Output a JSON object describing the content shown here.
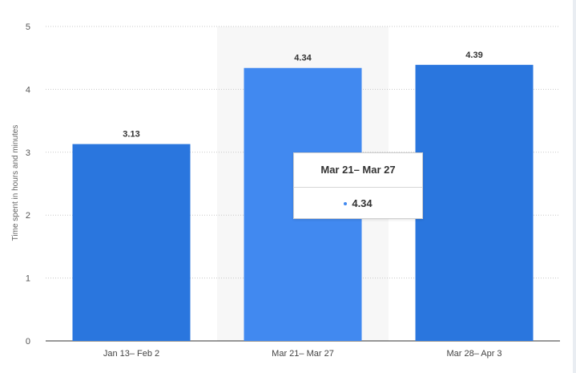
{
  "chart_data": {
    "type": "bar",
    "categories": [
      "Jan 13– Feb 2",
      "Mar 21– Mar 27",
      "Mar 28– Apr 3"
    ],
    "values": [
      3.13,
      4.34,
      4.39
    ],
    "value_labels": [
      "3.13",
      "4.34",
      "4.39"
    ],
    "ylabel": "Time spent in hours and minutes",
    "ylim": [
      0,
      5
    ],
    "yticks": [
      0,
      1,
      2,
      3,
      4,
      5
    ],
    "grid": true,
    "highlighted_index": 1,
    "colors": {
      "bar": "#2a76de",
      "bar_highlight": "#4189f0",
      "hover_band": "#f7f7f7",
      "grid": "#c8c8c8"
    }
  },
  "tooltip": {
    "title": "Mar 21– Mar 27",
    "value": "4.34"
  }
}
